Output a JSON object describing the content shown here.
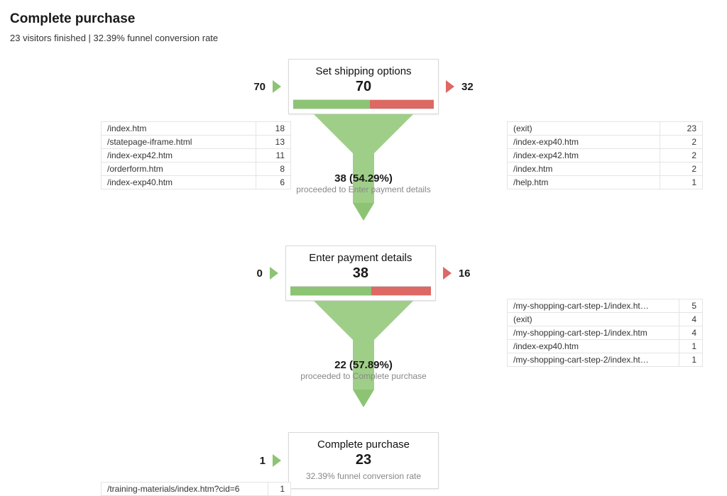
{
  "header": {
    "title": "Complete purchase",
    "subtext": "23 visitors finished | 32.39% funnel conversion rate"
  },
  "colors": {
    "green": "#8cc474",
    "red": "#dd6864",
    "funnel_fill": "#9fce88",
    "border": "#d9d9d9",
    "muted": "#888888"
  },
  "stages": [
    {
      "title": "Set shipping options",
      "count": "70",
      "in_count": "70",
      "out_count": "32",
      "bar_green_pct": 54.29,
      "in_table": [
        {
          "path": "/index.htm",
          "n": "18"
        },
        {
          "path": "/statepage-iframe.html",
          "n": "13"
        },
        {
          "path": "/index-exp42.htm",
          "n": "11"
        },
        {
          "path": "/orderform.htm",
          "n": "8"
        },
        {
          "path": "/index-exp40.htm",
          "n": "6"
        }
      ],
      "out_table": [
        {
          "path": "(exit)",
          "n": "23"
        },
        {
          "path": "/index-exp40.htm",
          "n": "2"
        },
        {
          "path": "/index-exp42.htm",
          "n": "2"
        },
        {
          "path": "/index.htm",
          "n": "2"
        },
        {
          "path": "/help.htm",
          "n": "1"
        }
      ],
      "proceed_count": "38 (54.29%)",
      "proceed_label": "proceeded to Enter payment details"
    },
    {
      "title": "Enter payment details",
      "count": "38",
      "in_count": "0",
      "out_count": "16",
      "bar_green_pct": 57.89,
      "in_table": [],
      "out_table": [
        {
          "path": "/my-shopping-cart-step-1/index.ht…",
          "n": "5"
        },
        {
          "path": "(exit)",
          "n": "4"
        },
        {
          "path": "/my-shopping-cart-step-1/index.htm",
          "n": "4"
        },
        {
          "path": "/index-exp40.htm",
          "n": "1"
        },
        {
          "path": "/my-shopping-cart-step-2/index.ht…",
          "n": "1"
        }
      ],
      "proceed_count": "22 (57.89%)",
      "proceed_label": "proceeded to Complete purchase"
    },
    {
      "title": "Complete purchase",
      "count": "23",
      "in_count": "1",
      "out_count": "",
      "in_table": [
        {
          "path": "/training-materials/index.htm?cid=6",
          "n": "1"
        }
      ],
      "out_table": [],
      "final_rate": "32.39% funnel conversion rate"
    }
  ]
}
